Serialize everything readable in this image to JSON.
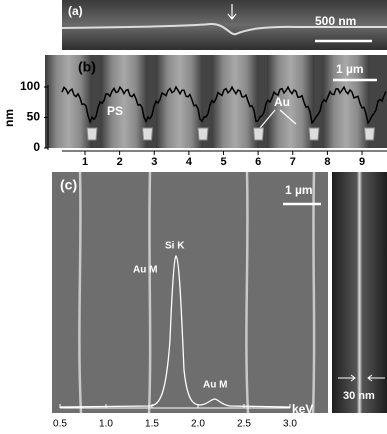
{
  "panels": {
    "a": {
      "label": "(a)",
      "scale": "500 nm"
    },
    "b": {
      "label": "(b)",
      "scale": "1 µm",
      "y_unit": "nm",
      "ylim": [
        0,
        100
      ],
      "yticks": [
        0,
        50,
        100
      ],
      "xlim": [
        1,
        9
      ],
      "xticks": [
        1,
        2,
        3,
        4,
        5,
        6,
        7,
        8,
        9
      ],
      "labels": [
        "PS",
        "Au"
      ]
    },
    "c": {
      "label": "(c)",
      "scale": "1 µm",
      "x_unit": "keV",
      "xlim": [
        0.5,
        3
      ],
      "xticks": [
        0.5,
        {
          "value": 1,
          "label": "1.0"
        },
        1.5,
        {
          "value": 2,
          "label": "2.0"
        },
        2.5,
        {
          "value": 3,
          "label": "3.0"
        }
      ],
      "peaks": [
        "Si K",
        "Au M",
        "Au M"
      ],
      "width": "30 nm"
    }
  }
}
